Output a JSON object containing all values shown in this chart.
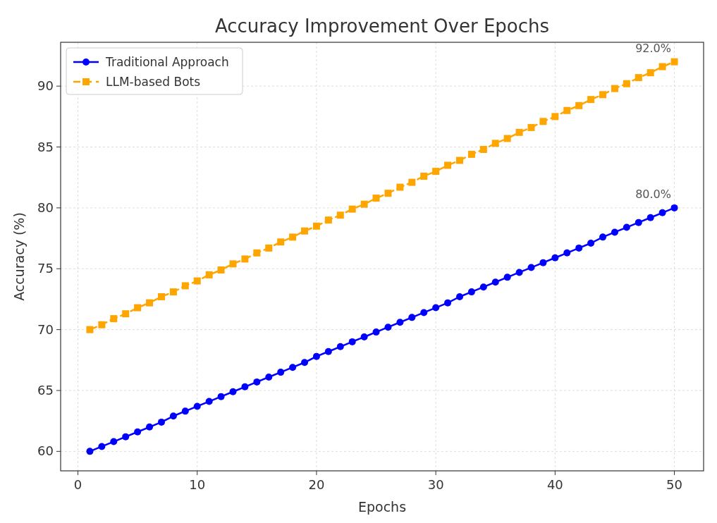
{
  "chart_data": {
    "type": "line",
    "title": "Accuracy Improvement Over Epochs",
    "xlabel": "Epochs",
    "ylabel": "Accuracy (%)",
    "x": [
      1,
      2,
      3,
      4,
      5,
      6,
      7,
      8,
      9,
      10,
      11,
      12,
      13,
      14,
      15,
      16,
      17,
      18,
      19,
      20,
      21,
      22,
      23,
      24,
      25,
      26,
      27,
      28,
      29,
      30,
      31,
      32,
      33,
      34,
      35,
      36,
      37,
      38,
      39,
      40,
      41,
      42,
      43,
      44,
      45,
      46,
      47,
      48,
      49,
      50
    ],
    "series": [
      {
        "name": "Traditional Approach",
        "color": "#0000ff",
        "marker": "circle",
        "line_style": "solid",
        "values": [
          60.0,
          60.4,
          60.8,
          61.2,
          61.6,
          62.0,
          62.4,
          62.9,
          63.3,
          63.7,
          64.1,
          64.5,
          64.9,
          65.3,
          65.7,
          66.1,
          66.5,
          66.9,
          67.3,
          67.8,
          68.2,
          68.6,
          69.0,
          69.4,
          69.8,
          70.2,
          70.6,
          71.0,
          71.4,
          71.8,
          72.2,
          72.7,
          73.1,
          73.5,
          73.9,
          74.3,
          74.7,
          75.1,
          75.5,
          75.9,
          76.3,
          76.7,
          77.1,
          77.6,
          78.0,
          78.4,
          78.8,
          79.2,
          79.6,
          80.0
        ]
      },
      {
        "name": "LLM-based Bots",
        "color": "#ffa500",
        "marker": "square",
        "line_style": "dashed",
        "values": [
          70.0,
          70.4,
          70.9,
          71.3,
          71.8,
          72.2,
          72.7,
          73.1,
          73.6,
          74.0,
          74.5,
          74.9,
          75.4,
          75.8,
          76.3,
          76.7,
          77.2,
          77.6,
          78.1,
          78.5,
          79.0,
          79.4,
          79.9,
          80.3,
          80.8,
          81.2,
          81.7,
          82.1,
          82.6,
          83.0,
          83.5,
          83.9,
          84.4,
          84.8,
          85.3,
          85.7,
          86.2,
          86.6,
          87.1,
          87.5,
          88.0,
          88.4,
          88.9,
          89.3,
          89.8,
          90.2,
          90.7,
          91.1,
          91.6,
          92.0
        ]
      }
    ],
    "annotations": [
      {
        "text": "80.0%",
        "x": 50,
        "y": 80.0
      },
      {
        "text": "92.0%",
        "x": 50,
        "y": 92.0
      }
    ],
    "xlim": [
      -1.45,
      52.45
    ],
    "xticks": [
      0,
      10,
      20,
      30,
      40,
      50
    ],
    "ylim": [
      58.4,
      93.6
    ],
    "yticks": [
      60,
      65,
      70,
      75,
      80,
      85,
      90
    ],
    "grid": true,
    "legend": "top left"
  }
}
